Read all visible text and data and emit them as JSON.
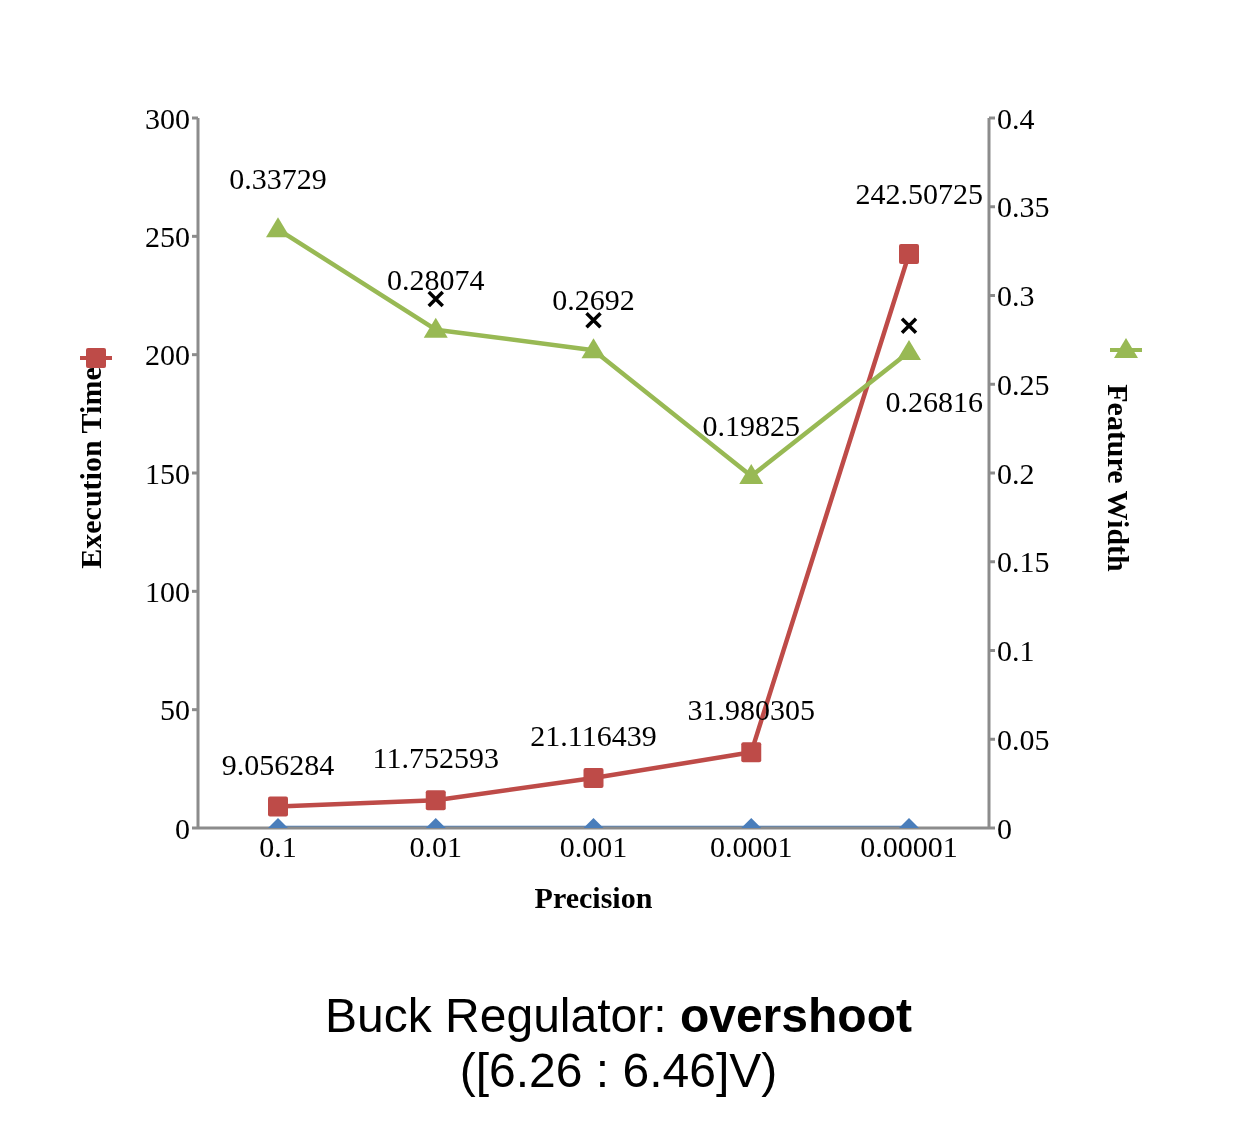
{
  "chart_data": {
    "type": "line",
    "title": "Buck Regulator: overshoot",
    "subtitle": "([6.26 : 6.46]V)",
    "xlabel": "Precision",
    "ylabel": "Execution Time",
    "y2label": "Feature Width",
    "categories": [
      "0.1",
      "0.01",
      "0.001",
      "0.0001",
      "0.00001"
    ],
    "series": [
      {
        "color": "#4a7ebb",
        "marker": "diamond",
        "values": [
          0,
          0,
          0,
          0,
          0
        ]
      },
      {
        "color": "#be4b48",
        "marker": "square",
        "values": [
          9.056284,
          11.752593,
          21.116439,
          31.980305,
          242.50725
        ],
        "value_labels": [
          "9.056284",
          "11.752593",
          "21.116439",
          "31.980305",
          "242.50725"
        ]
      },
      {
        "color": "#98b954",
        "marker": "triangle",
        "axis": "y2",
        "values": [
          0.33729,
          0.28074,
          0.2692,
          0.19825,
          0.26816
        ],
        "value_labels": [
          "0.33729",
          "0.28074",
          "0.2692",
          "0.19825",
          "0.26816"
        ]
      },
      {
        "type": "scatter",
        "color": "#000000",
        "marker": "cross",
        "axis": "y2",
        "values": [
          null,
          0.298,
          0.286,
          null,
          0.283
        ]
      }
    ],
    "ylim": [
      0,
      300
    ],
    "yticks": [
      0,
      50,
      100,
      150,
      200,
      250,
      300
    ],
    "y2lim": [
      0,
      0.4
    ],
    "y2ticks": [
      0,
      0.05,
      0.1,
      0.15,
      0.2,
      0.25,
      0.3,
      0.35,
      0.4
    ],
    "grid": false,
    "legend": false
  }
}
